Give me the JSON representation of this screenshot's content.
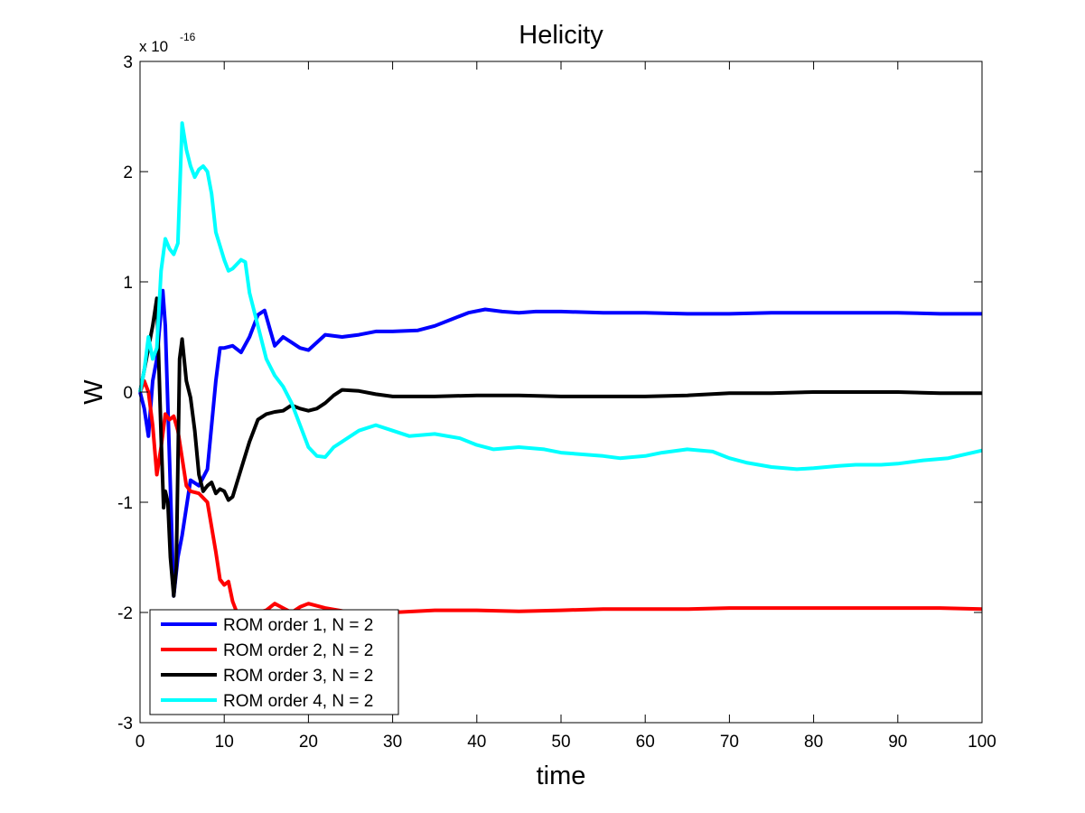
{
  "chart_data": {
    "type": "line",
    "title": "Helicity",
    "xlabel": "time",
    "ylabel": "W",
    "y_exponent": {
      "base": "x 10",
      "power": "-16"
    },
    "xlim": [
      0,
      100
    ],
    "ylim": [
      -3,
      3
    ],
    "xticks": [
      0,
      10,
      20,
      30,
      40,
      50,
      60,
      70,
      80,
      90,
      100
    ],
    "yticks": [
      -3,
      -2,
      -1,
      0,
      1,
      2,
      3
    ],
    "xtick_labels": [
      "0",
      "10",
      "20",
      "30",
      "40",
      "50",
      "60",
      "70",
      "80",
      "90",
      "100"
    ],
    "ytick_labels": [
      "-3",
      "-2",
      "-1",
      "0",
      "1",
      "2",
      "3"
    ],
    "grid": false,
    "legend_position": "bottom-left",
    "series": [
      {
        "name": "ROM order 1, N = 2",
        "color": "#0000ff",
        "points": [
          [
            0,
            0
          ],
          [
            0.5,
            -0.15
          ],
          [
            1,
            -0.4
          ],
          [
            1.5,
            0.1
          ],
          [
            2,
            0.3
          ],
          [
            2.7,
            0.92
          ],
          [
            3,
            0.6
          ],
          [
            3.5,
            -0.6
          ],
          [
            4,
            -1.85
          ],
          [
            4.5,
            -1.5
          ],
          [
            5,
            -1.3
          ],
          [
            6,
            -0.8
          ],
          [
            7,
            -0.85
          ],
          [
            8,
            -0.7
          ],
          [
            9,
            0.1
          ],
          [
            9.5,
            0.4
          ],
          [
            10,
            0.4
          ],
          [
            11,
            0.42
          ],
          [
            12,
            0.36
          ],
          [
            13,
            0.5
          ],
          [
            14,
            0.7
          ],
          [
            14.8,
            0.74
          ],
          [
            15.5,
            0.55
          ],
          [
            16,
            0.42
          ],
          [
            17,
            0.5
          ],
          [
            18,
            0.45
          ],
          [
            19,
            0.4
          ],
          [
            20,
            0.38
          ],
          [
            21,
            0.45
          ],
          [
            22,
            0.52
          ],
          [
            24,
            0.5
          ],
          [
            26,
            0.52
          ],
          [
            28,
            0.55
          ],
          [
            30,
            0.55
          ],
          [
            33,
            0.56
          ],
          [
            35,
            0.6
          ],
          [
            37,
            0.66
          ],
          [
            39,
            0.72
          ],
          [
            41,
            0.75
          ],
          [
            43,
            0.73
          ],
          [
            45,
            0.72
          ],
          [
            47,
            0.73
          ],
          [
            50,
            0.73
          ],
          [
            55,
            0.72
          ],
          [
            60,
            0.72
          ],
          [
            65,
            0.71
          ],
          [
            70,
            0.71
          ],
          [
            75,
            0.72
          ],
          [
            80,
            0.72
          ],
          [
            85,
            0.72
          ],
          [
            90,
            0.72
          ],
          [
            95,
            0.71
          ],
          [
            100,
            0.71
          ]
        ]
      },
      {
        "name": "ROM order 2, N = 2",
        "color": "#ff0000",
        "points": [
          [
            0,
            0
          ],
          [
            0.5,
            0.1
          ],
          [
            1,
            0
          ],
          [
            1.5,
            -0.3
          ],
          [
            2,
            -0.75
          ],
          [
            2.5,
            -0.5
          ],
          [
            3,
            -0.2
          ],
          [
            3.5,
            -0.25
          ],
          [
            4,
            -0.22
          ],
          [
            4.5,
            -0.35
          ],
          [
            5,
            -0.6
          ],
          [
            5.5,
            -0.85
          ],
          [
            6,
            -0.9
          ],
          [
            7,
            -0.92
          ],
          [
            8,
            -1.0
          ],
          [
            9,
            -1.45
          ],
          [
            9.5,
            -1.7
          ],
          [
            10,
            -1.75
          ],
          [
            10.5,
            -1.72
          ],
          [
            11,
            -1.9
          ],
          [
            11.5,
            -2.0
          ],
          [
            13,
            -2.02
          ],
          [
            15,
            -1.98
          ],
          [
            16,
            -1.92
          ],
          [
            17,
            -1.96
          ],
          [
            18,
            -2.0
          ],
          [
            19,
            -1.95
          ],
          [
            20,
            -1.92
          ],
          [
            22,
            -1.96
          ],
          [
            25,
            -2.0
          ],
          [
            30,
            -2.0
          ],
          [
            35,
            -1.98
          ],
          [
            40,
            -1.98
          ],
          [
            45,
            -1.99
          ],
          [
            50,
            -1.98
          ],
          [
            55,
            -1.97
          ],
          [
            60,
            -1.97
          ],
          [
            65,
            -1.97
          ],
          [
            70,
            -1.96
          ],
          [
            75,
            -1.96
          ],
          [
            80,
            -1.96
          ],
          [
            85,
            -1.96
          ],
          [
            90,
            -1.96
          ],
          [
            95,
            -1.96
          ],
          [
            100,
            -1.97
          ]
        ]
      },
      {
        "name": "ROM order 3, N = 2",
        "color": "#000000",
        "points": [
          [
            0,
            0
          ],
          [
            0.5,
            0.2
          ],
          [
            1,
            0.4
          ],
          [
            1.5,
            0.6
          ],
          [
            2,
            0.85
          ],
          [
            2.5,
            -0.4
          ],
          [
            2.8,
            -1.05
          ],
          [
            3,
            -0.9
          ],
          [
            3.3,
            -1.0
          ],
          [
            3.6,
            -1.5
          ],
          [
            4,
            -1.85
          ],
          [
            4.3,
            -1.6
          ],
          [
            4.7,
            0.3
          ],
          [
            5,
            0.48
          ],
          [
            5.5,
            0.1
          ],
          [
            6,
            -0.05
          ],
          [
            6.5,
            -0.35
          ],
          [
            7,
            -0.75
          ],
          [
            7.5,
            -0.9
          ],
          [
            8,
            -0.85
          ],
          [
            8.5,
            -0.82
          ],
          [
            9,
            -0.92
          ],
          [
            9.5,
            -0.88
          ],
          [
            10,
            -0.9
          ],
          [
            10.5,
            -0.98
          ],
          [
            11,
            -0.95
          ],
          [
            12,
            -0.7
          ],
          [
            13,
            -0.45
          ],
          [
            14,
            -0.25
          ],
          [
            15,
            -0.2
          ],
          [
            16,
            -0.18
          ],
          [
            17,
            -0.17
          ],
          [
            18,
            -0.12
          ],
          [
            19,
            -0.15
          ],
          [
            20,
            -0.17
          ],
          [
            21,
            -0.15
          ],
          [
            22,
            -0.1
          ],
          [
            23,
            -0.03
          ],
          [
            24,
            0.02
          ],
          [
            26,
            0.01
          ],
          [
            28,
            -0.02
          ],
          [
            30,
            -0.04
          ],
          [
            35,
            -0.04
          ],
          [
            40,
            -0.03
          ],
          [
            45,
            -0.03
          ],
          [
            50,
            -0.04
          ],
          [
            55,
            -0.04
          ],
          [
            60,
            -0.04
          ],
          [
            65,
            -0.03
          ],
          [
            70,
            -0.01
          ],
          [
            75,
            -0.01
          ],
          [
            80,
            0
          ],
          [
            85,
            0
          ],
          [
            90,
            0
          ],
          [
            95,
            -0.01
          ],
          [
            100,
            -0.01
          ]
        ]
      },
      {
        "name": "ROM order 4, N = 2",
        "color": "#00ffff",
        "points": [
          [
            0,
            0
          ],
          [
            0.5,
            0.2
          ],
          [
            1,
            0.5
          ],
          [
            1.5,
            0.3
          ],
          [
            2,
            0.4
          ],
          [
            2.5,
            1.1
          ],
          [
            3,
            1.39
          ],
          [
            3.5,
            1.3
          ],
          [
            4,
            1.25
          ],
          [
            4.5,
            1.35
          ],
          [
            5,
            2.44
          ],
          [
            5.5,
            2.2
          ],
          [
            6,
            2.05
          ],
          [
            6.5,
            1.95
          ],
          [
            7,
            2.02
          ],
          [
            7.5,
            2.05
          ],
          [
            8,
            2.0
          ],
          [
            8.5,
            1.8
          ],
          [
            9,
            1.45
          ],
          [
            10,
            1.2
          ],
          [
            10.5,
            1.1
          ],
          [
            11,
            1.12
          ],
          [
            12,
            1.2
          ],
          [
            12.5,
            1.18
          ],
          [
            13,
            0.9
          ],
          [
            14,
            0.6
          ],
          [
            15,
            0.3
          ],
          [
            16,
            0.15
          ],
          [
            17,
            0.05
          ],
          [
            18,
            -0.1
          ],
          [
            19,
            -0.3
          ],
          [
            20,
            -0.5
          ],
          [
            21,
            -0.58
          ],
          [
            22,
            -0.59
          ],
          [
            23,
            -0.5
          ],
          [
            24,
            -0.45
          ],
          [
            25,
            -0.4
          ],
          [
            26,
            -0.35
          ],
          [
            28,
            -0.3
          ],
          [
            30,
            -0.35
          ],
          [
            32,
            -0.4
          ],
          [
            35,
            -0.38
          ],
          [
            38,
            -0.42
          ],
          [
            40,
            -0.48
          ],
          [
            42,
            -0.52
          ],
          [
            45,
            -0.5
          ],
          [
            48,
            -0.52
          ],
          [
            50,
            -0.55
          ],
          [
            55,
            -0.58
          ],
          [
            57,
            -0.6
          ],
          [
            60,
            -0.58
          ],
          [
            62,
            -0.55
          ],
          [
            65,
            -0.52
          ],
          [
            68,
            -0.54
          ],
          [
            70,
            -0.6
          ],
          [
            72,
            -0.64
          ],
          [
            75,
            -0.68
          ],
          [
            78,
            -0.7
          ],
          [
            80,
            -0.69
          ],
          [
            83,
            -0.67
          ],
          [
            85,
            -0.66
          ],
          [
            88,
            -0.66
          ],
          [
            90,
            -0.65
          ],
          [
            93,
            -0.62
          ],
          [
            96,
            -0.6
          ],
          [
            100,
            -0.53
          ]
        ]
      }
    ]
  }
}
